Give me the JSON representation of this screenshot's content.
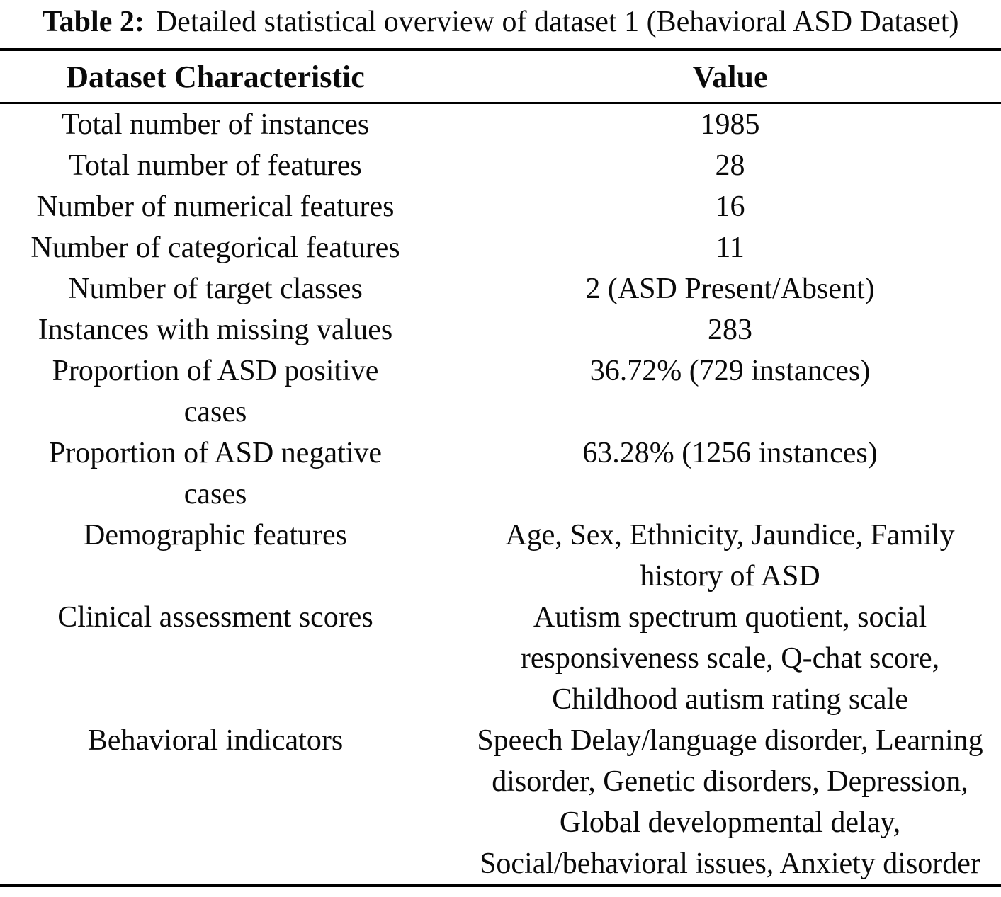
{
  "caption": {
    "label": "Table 2:",
    "text": "Detailed statistical overview of dataset 1 (Behavioral ASD Dataset)"
  },
  "table": {
    "columns": [
      "Dataset Characteristic",
      "Value"
    ],
    "rows": [
      {
        "characteristic": "Total number of instances",
        "value": "1985"
      },
      {
        "characteristic": "Total number of features",
        "value": "28"
      },
      {
        "characteristic": "Number of numerical features",
        "value": "16"
      },
      {
        "characteristic": "Number of categorical features",
        "value": "11"
      },
      {
        "characteristic": "Number of target classes",
        "value": "2 (ASD Present/Absent)"
      },
      {
        "characteristic": "Instances with missing values",
        "value": "283"
      },
      {
        "characteristic": "Proportion of ASD positive\ncases",
        "value": "36.72% (729 instances)"
      },
      {
        "characteristic": "Proportion of ASD negative\ncases",
        "value": "63.28% (1256 instances)"
      },
      {
        "characteristic": "Demographic features",
        "value": "Age, Sex, Ethnicity, Jaundice, Family\nhistory of ASD"
      },
      {
        "characteristic": "Clinical assessment scores",
        "value": "Autism spectrum quotient, social\nresponsiveness scale, Q-chat score,\nChildhood autism rating scale"
      },
      {
        "characteristic": "Behavioral indicators",
        "value": "Speech Delay/language disorder, Learning\ndisorder, Genetic disorders, Depression,\nGlobal developmental delay,\nSocial/behavioral issues, Anxiety disorder"
      }
    ]
  }
}
